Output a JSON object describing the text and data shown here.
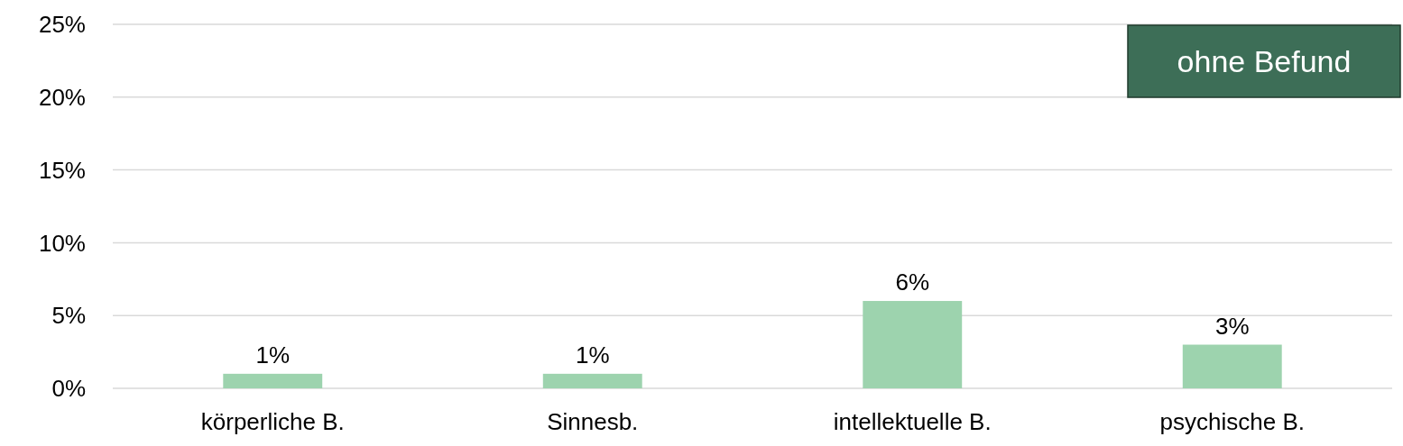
{
  "chart_data": {
    "type": "bar",
    "title": "ohne Befund",
    "categories": [
      "körperliche B.",
      "Sinnesb.",
      "intellektuelle B.",
      "psychische B."
    ],
    "values": [
      1,
      1,
      6,
      3
    ],
    "color": "#9dd3ae",
    "value_labels": [
      "1%",
      "1%",
      "6%",
      "3%"
    ],
    "ylim": [
      0,
      25
    ],
    "yticks": [
      {
        "value": 0,
        "label": "0%"
      },
      {
        "value": 5,
        "label": "5%"
      },
      {
        "value": 10,
        "label": "10%"
      },
      {
        "value": 15,
        "label": "15%"
      },
      {
        "value": 20,
        "label": "20%"
      },
      {
        "value": 25,
        "label": "25%"
      }
    ],
    "grid": "y"
  }
}
